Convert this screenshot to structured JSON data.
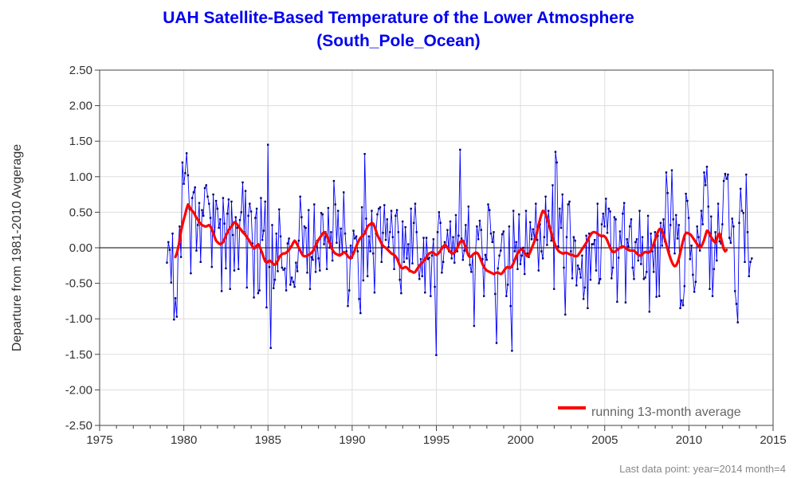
{
  "chart_data": {
    "type": "line",
    "title": "UAH Satellite-Based Temperature of the Lower Atmosphere",
    "subtitle": "(South_Pole_Ocean)",
    "ylabel": "Departure from 1981-2010 Avgerage",
    "xlabel": "",
    "xlim": [
      1975,
      2015
    ],
    "ylim": [
      -2.5,
      2.5
    ],
    "x_ticks": [
      1975,
      1980,
      1985,
      1990,
      1995,
      2000,
      2005,
      2010,
      2015
    ],
    "x_tick_labels": [
      "1975",
      "1980",
      "1985",
      "1990",
      "1995",
      "2000",
      "2005",
      "2010",
      "2015"
    ],
    "y_ticks": [
      -2.5,
      -2.0,
      -1.5,
      -1.0,
      -0.5,
      0.0,
      0.5,
      1.0,
      1.5,
      2.0,
      2.5
    ],
    "y_tick_labels": [
      "-2.50",
      "-2.00",
      "-1.50",
      "-1.00",
      "-0.50",
      "0.00",
      "0.50",
      "1.00",
      "1.50",
      "2.00",
      "2.50"
    ],
    "grid": true,
    "zero_line": true,
    "legend": {
      "placement": "bottom-right",
      "entries": [
        "running 13-month average"
      ]
    },
    "footnote": "Last data point: year=2014 month=4",
    "colors": {
      "monthly": "#0000ff",
      "average": "#ff0000",
      "title": "#0000ee",
      "grid": "#dddddd"
    },
    "series": [
      {
        "role": "monthly",
        "x_start": 1979.0,
        "x_step": 0.0833,
        "values": [
          -0.21,
          0.08,
          -0.03,
          -0.49,
          0.2,
          -1.01,
          -0.71,
          -0.97,
          0.02,
          0.3,
          -0.13,
          1.2,
          0.9,
          1.05,
          1.33,
          1.02,
          0.55,
          -0.36,
          0.7,
          0.78,
          0.85,
          -0.04,
          0.32,
          0.63,
          -0.2,
          0.53,
          0.45,
          0.84,
          0.88,
          0.72,
          0.62,
          0.42,
          -0.27,
          0.75,
          0.15,
          0.66,
          0.55,
          0.28,
          0.4,
          -0.61,
          0.7,
          0.34,
          -0.29,
          0.48,
          0.68,
          -0.58,
          0.65,
          0.18,
          -0.32,
          0.43,
          0.28,
          -0.3,
          0.39,
          0.5,
          0.92,
          0.22,
          0.8,
          -0.56,
          0.45,
          0.62,
          0.51,
          0.06,
          -0.7,
          0.42,
          0.55,
          -0.64,
          -0.6,
          0.7,
          0.11,
          0.24,
          0.65,
          -0.84,
          1.45,
          -0.27,
          -1.41,
          0.32,
          -0.57,
          -0.45,
          0.2,
          -0.33,
          0.54,
          0.16,
          -0.28,
          -0.31,
          -0.29,
          -0.6,
          0.06,
          0.13,
          -0.52,
          -0.42,
          -0.48,
          -0.55,
          -0.21,
          -0.33,
          0.1,
          0.72,
          0.43,
          -0.11,
          0.3,
          0.28,
          -0.35,
          0.53,
          -0.58,
          -0.13,
          -0.17,
          0.61,
          -0.34,
          0.1,
          -0.15,
          -0.32,
          0.49,
          0.47,
          0.05,
          0.22,
          -0.3,
          0.56,
          0.0,
          0.22,
          -0.18,
          0.94,
          0.61,
          0.07,
          0.52,
          -0.1,
          0.27,
          -0.09,
          0.78,
          0.2,
          -0.05,
          -0.82,
          -0.6,
          0.03,
          -0.14,
          0.24,
          0.13,
          0.16,
          -0.05,
          -0.72,
          -0.92,
          0.57,
          -0.46,
          1.32,
          0.41,
          -0.4,
          0.16,
          -0.05,
          0.52,
          -0.08,
          -0.63,
          0.2,
          0.47,
          0.55,
          0.57,
          -0.2,
          0.21,
          0.6,
          0.11,
          0.4,
          0.01,
          0.22,
          0.52,
          0.15,
          -0.3,
          0.45,
          0.53,
          0.22,
          -0.45,
          -0.64,
          0.37,
          -0.2,
          0.29,
          -0.15,
          0.05,
          -0.33,
          0.55,
          -0.22,
          0.35,
          0.62,
          0.22,
          -0.29,
          -0.44,
          -0.16,
          -0.4,
          0.14,
          -0.63,
          0.14,
          -0.16,
          -0.14,
          -0.68,
          -0.11,
          0.12,
          -0.55,
          -1.51,
          0.22,
          0.5,
          0.35,
          -0.35,
          -0.2,
          0.08,
          0.01,
          0.25,
          -0.05,
          0.37,
          -0.15,
          0.15,
          -0.21,
          0.46,
          -0.05,
          0.17,
          1.38,
          0.13,
          -0.17,
          -0.04,
          0.32,
          -0.03,
          0.58,
          -0.24,
          -0.34,
          -0.1,
          -1.1,
          -0.08,
          0.3,
          0.12,
          0.38,
          0.25,
          -0.16,
          -0.68,
          -0.1,
          -0.17,
          0.61,
          0.53,
          0.2,
          0.08,
          0.22,
          -0.65,
          -1.34,
          -0.29,
          -0.11,
          -0.04,
          0.19,
          0.23,
          -0.3,
          -0.68,
          -0.52,
          0.3,
          -0.82,
          -1.45,
          0.52,
          -0.05,
          0.08,
          -0.3,
          0.47,
          -0.23,
          -0.11,
          0.0,
          -0.37,
          0.52,
          -0.08,
          -0.13,
          0.36,
          0.12,
          0.26,
          0.12,
          0.62,
          0.11,
          -0.32,
          0.33,
          -0.05,
          -0.15,
          0.15,
          0.72,
          0.04,
          0.52,
          0.3,
          0.1,
          0.88,
          -0.58,
          1.35,
          1.2,
          0.02,
          0.55,
          0.28,
          0.75,
          -0.28,
          -0.94,
          0.15,
          0.61,
          0.65,
          -0.05,
          -0.43,
          0.15,
          0.1,
          -0.53,
          -0.25,
          -0.3,
          -0.42,
          -0.11,
          -0.72,
          -0.56,
          0.17,
          -0.85,
          0.2,
          -0.45,
          0.05,
          0.05,
          0.11,
          -0.32,
          0.62,
          -0.5,
          -0.44,
          0.33,
          0.48,
          0.3,
          0.69,
          0.21,
          0.55,
          0.51,
          -0.43,
          -0.28,
          0.43,
          0.4,
          -0.76,
          -0.14,
          0.23,
          0.0,
          0.48,
          0.63,
          -0.77,
          0.12,
          0.02,
          0.3,
          0.4,
          -0.28,
          -0.44,
          0.08,
          0.12,
          -0.18,
          0.52,
          -0.23,
          0.15,
          -0.44,
          -0.42,
          -0.34,
          0.45,
          -0.9,
          0.2,
          -0.05,
          -0.34,
          0.22,
          -0.69,
          0.17,
          -0.68,
          0.35,
          0.03,
          0.4,
          0.09,
          1.06,
          0.77,
          -0.05,
          0.32,
          1.09,
          0.4,
          -0.08,
          0.46,
          0.13,
          0.32,
          -0.85,
          -0.74,
          -0.81,
          -0.54,
          0.76,
          0.66,
          0.42,
          -0.16,
          0.03,
          -0.38,
          -0.62,
          -0.48,
          0.3,
          0.15,
          -0.04,
          0.52,
          0.33,
          1.06,
          0.88,
          1.14,
          0.58,
          -0.58,
          0.44,
          -0.68,
          -0.3,
          0.22,
          -0.18,
          0.62,
          0.09,
          0.06,
          0.33,
          0.94,
          1.04,
          0.97,
          1.03,
          0.14,
          0.07,
          0.41,
          0.3,
          -0.61,
          -0.79,
          -1.05,
          0.35,
          0.83,
          0.52,
          0.49,
          -0.2,
          1.03,
          0.22,
          -0.4,
          -0.2,
          -0.15
        ]
      },
      {
        "role": "average",
        "name": "running 13-month average",
        "x_start": 1979.5,
        "x_step": 0.0833,
        "values": [
          -0.13,
          -0.08,
          0.0,
          0.1,
          0.23,
          0.32,
          0.4,
          0.47,
          0.55,
          0.61,
          0.58,
          0.54,
          0.52,
          0.5,
          0.46,
          0.42,
          0.4,
          0.36,
          0.34,
          0.32,
          0.31,
          0.3,
          0.3,
          0.31,
          0.32,
          0.3,
          0.26,
          0.21,
          0.15,
          0.1,
          0.08,
          0.06,
          0.05,
          0.06,
          0.08,
          0.12,
          0.17,
          0.21,
          0.25,
          0.28,
          0.3,
          0.33,
          0.36,
          0.35,
          0.33,
          0.3,
          0.27,
          0.25,
          0.22,
          0.2,
          0.18,
          0.15,
          0.12,
          0.09,
          0.05,
          0.02,
          -0.01,
          0.0,
          0.03,
          0.05,
          0.02,
          -0.03,
          -0.08,
          -0.14,
          -0.19,
          -0.21,
          -0.2,
          -0.18,
          -0.19,
          -0.21,
          -0.23,
          -0.24,
          -0.22,
          -0.18,
          -0.14,
          -0.11,
          -0.09,
          -0.08,
          -0.08,
          -0.07,
          -0.05,
          -0.03,
          0.0,
          0.03,
          0.07,
          0.1,
          0.08,
          0.04,
          0.0,
          -0.04,
          -0.08,
          -0.11,
          -0.12,
          -0.12,
          -0.11,
          -0.1,
          -0.09,
          -0.07,
          -0.05,
          -0.01,
          0.03,
          0.07,
          0.11,
          0.14,
          0.17,
          0.2,
          0.22,
          0.2,
          0.17,
          0.12,
          0.07,
          0.02,
          -0.03,
          -0.06,
          -0.08,
          -0.09,
          -0.1,
          -0.11,
          -0.1,
          -0.08,
          -0.06,
          -0.07,
          -0.09,
          -0.12,
          -0.14,
          -0.15,
          -0.12,
          -0.08,
          -0.03,
          0.02,
          0.07,
          0.11,
          0.14,
          0.16,
          0.18,
          0.2,
          0.25,
          0.3,
          0.32,
          0.33,
          0.35,
          0.34,
          0.3,
          0.24,
          0.18,
          0.14,
          0.1,
          0.06,
          0.03,
          0.01,
          0.0,
          -0.02,
          -0.04,
          -0.06,
          -0.08,
          -0.09,
          -0.1,
          -0.12,
          -0.15,
          -0.2,
          -0.25,
          -0.28,
          -0.29,
          -0.28,
          -0.27,
          -0.28,
          -0.3,
          -0.32,
          -0.33,
          -0.34,
          -0.35,
          -0.34,
          -0.31,
          -0.28,
          -0.25,
          -0.23,
          -0.21,
          -0.19,
          -0.16,
          -0.13,
          -0.1,
          -0.08,
          -0.07,
          -0.06,
          -0.07,
          -0.09,
          -0.1,
          -0.09,
          -0.07,
          -0.04,
          -0.01,
          0.02,
          0.04,
          0.03,
          0.0,
          -0.03,
          -0.06,
          -0.08,
          -0.08,
          -0.07,
          -0.04,
          0.0,
          0.04,
          0.08,
          0.1,
          0.1,
          0.06,
          0.0,
          -0.06,
          -0.11,
          -0.13,
          -0.12,
          -0.1,
          -0.08,
          -0.07,
          -0.07,
          -0.09,
          -0.13,
          -0.18,
          -0.23,
          -0.27,
          -0.3,
          -0.32,
          -0.33,
          -0.34,
          -0.35,
          -0.36,
          -0.37,
          -0.36,
          -0.35,
          -0.35,
          -0.36,
          -0.37,
          -0.36,
          -0.33,
          -0.3,
          -0.28,
          -0.27,
          -0.28,
          -0.28,
          -0.26,
          -0.22,
          -0.17,
          -0.12,
          -0.08,
          -0.05,
          -0.03,
          -0.02,
          -0.04,
          -0.07,
          -0.1,
          -0.12,
          -0.1,
          -0.06,
          -0.01,
          0.04,
          0.09,
          0.15,
          0.23,
          0.32,
          0.4,
          0.47,
          0.52,
          0.51,
          0.47,
          0.41,
          0.35,
          0.28,
          0.21,
          0.14,
          0.08,
          0.03,
          -0.01,
          -0.04,
          -0.06,
          -0.07,
          -0.08,
          -0.08,
          -0.07,
          -0.07,
          -0.08,
          -0.09,
          -0.1,
          -0.1,
          -0.11,
          -0.12,
          -0.12,
          -0.11,
          -0.08,
          -0.05,
          -0.02,
          0.01,
          0.04,
          0.07,
          0.11,
          0.15,
          0.18,
          0.21,
          0.22,
          0.22,
          0.21,
          0.2,
          0.18,
          0.17,
          0.16,
          0.17,
          0.16,
          0.14,
          0.1,
          0.05,
          0.0,
          -0.04,
          -0.06,
          -0.06,
          -0.05,
          -0.03,
          -0.01,
          0.0,
          0.01,
          0.02,
          0.01,
          0.0,
          -0.02,
          -0.03,
          -0.04,
          -0.04,
          -0.04,
          -0.04,
          -0.06,
          -0.08,
          -0.1,
          -0.11,
          -0.11,
          -0.09,
          -0.07,
          -0.06,
          -0.06,
          -0.07,
          -0.06,
          -0.04,
          0.0,
          0.05,
          0.11,
          0.17,
          0.22,
          0.26,
          0.27,
          0.24,
          0.19,
          0.12,
          0.05,
          -0.02,
          -0.09,
          -0.15,
          -0.2,
          -0.24,
          -0.26,
          -0.25,
          -0.21,
          -0.15,
          -0.07,
          0.02,
          0.1,
          0.17,
          0.21,
          0.21,
          0.2,
          0.19,
          0.17,
          0.14,
          0.11,
          0.08,
          0.05,
          0.02,
          0.0,
          0.02,
          0.06,
          0.11,
          0.18,
          0.24,
          0.23,
          0.19,
          0.15,
          0.12,
          0.09,
          0.07,
          0.12,
          0.18,
          0.2,
          0.14,
          0.06,
          -0.02,
          -0.05,
          -0.03
        ]
      }
    ]
  }
}
